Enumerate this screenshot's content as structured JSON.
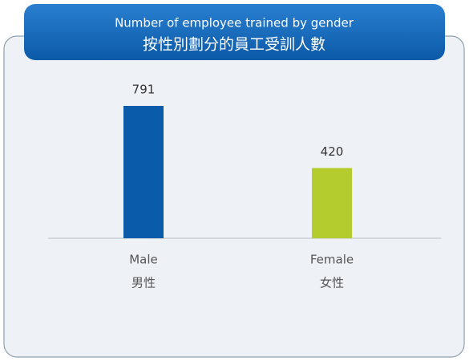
{
  "chart_data": {
    "type": "bar",
    "title": "Number of employee trained by gender",
    "subtitle": "按性別劃分的員工受訓人數",
    "categories": [
      "Male",
      "Female"
    ],
    "categories_zh": [
      "男性",
      "女性"
    ],
    "values": [
      791,
      420
    ],
    "colors": [
      "#0a5cab",
      "#b5cc2e"
    ]
  }
}
